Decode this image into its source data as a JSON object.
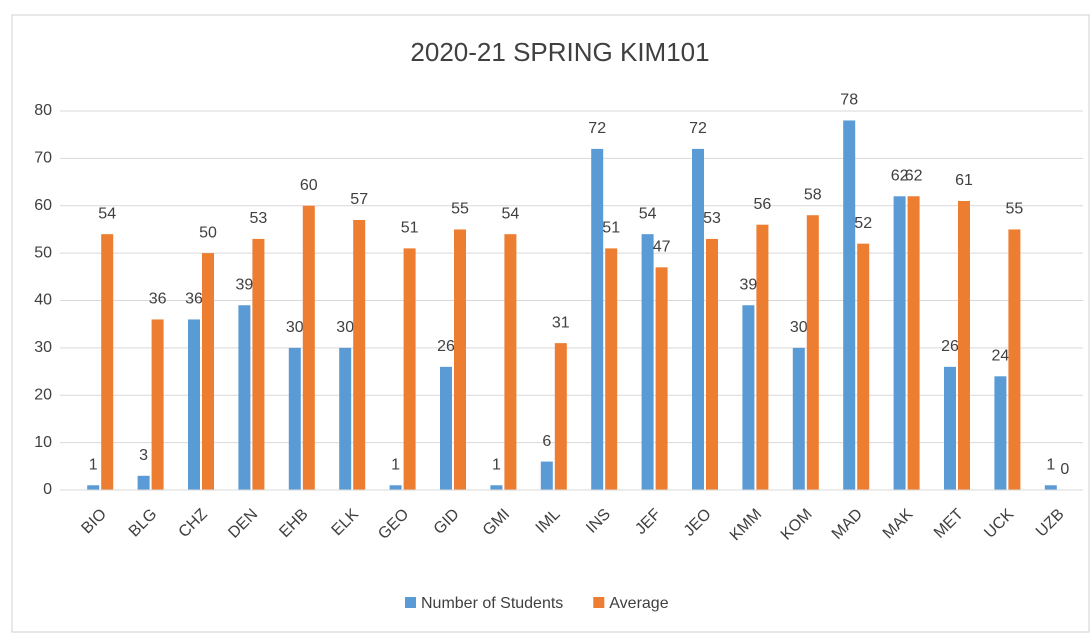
{
  "chart_data": {
    "type": "bar",
    "title": "2020-21 SPRING KIM101",
    "categories": [
      "BIO",
      "BLG",
      "CHZ",
      "DEN",
      "EHB",
      "ELK",
      "GEO",
      "GID",
      "GMI",
      "IML",
      "INS",
      "JEF",
      "JEO",
      "KMM",
      "KOM",
      "MAD",
      "MAK",
      "MET",
      "UCK",
      "UZB"
    ],
    "series": [
      {
        "name": "Number of Students",
        "color": "#5b9bd5",
        "values": [
          1,
          3,
          36,
          39,
          30,
          30,
          1,
          26,
          1,
          6,
          72,
          54,
          72,
          39,
          30,
          78,
          62,
          26,
          24,
          1
        ]
      },
      {
        "name": "Average",
        "color": "#ed7d31",
        "values": [
          54,
          36,
          50,
          53,
          60,
          57,
          51,
          55,
          54,
          31,
          51,
          47,
          53,
          56,
          58,
          52,
          62,
          61,
          55,
          0
        ]
      }
    ],
    "ylim": [
      0,
      80
    ],
    "yticks": [
      0,
      10,
      20,
      30,
      40,
      50,
      60,
      70,
      80
    ],
    "grid": true,
    "legend": "bottom"
  }
}
